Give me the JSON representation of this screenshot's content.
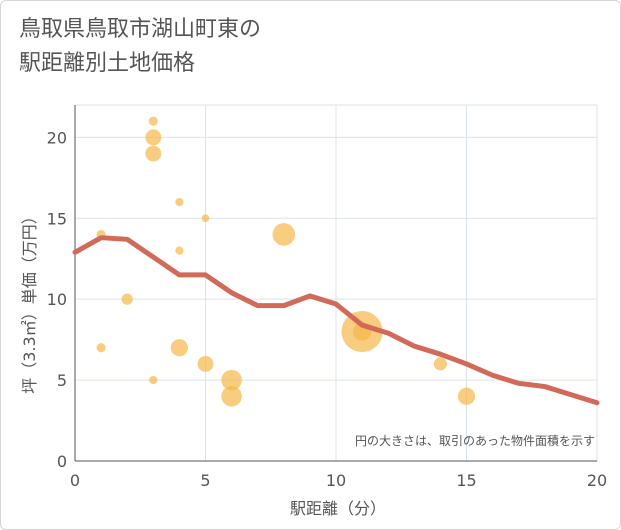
{
  "title": {
    "line1": "鳥取県鳥取市湖山町東の",
    "line2": "駅距離別土地価格"
  },
  "colors": {
    "bubble": "#f5b84a",
    "line": "#d26a5a",
    "grid": "#d9e3ec",
    "axis": "#555555"
  },
  "chart_data": {
    "type": "scatter",
    "title": "鳥取県鳥取市湖山町東の駅距離別土地価格",
    "xlabel": "駅距離（分）",
    "ylabel": "坪（3.3㎡）単価（万円）",
    "xlim": [
      0,
      20
    ],
    "ylim": [
      0,
      22
    ],
    "xticks": [
      0,
      5,
      10,
      15,
      20
    ],
    "yticks": [
      0,
      5,
      10,
      15,
      20
    ],
    "grid": true,
    "note": "円の大きさは、取引のあった物件面積を示す",
    "scatter": [
      {
        "x": 1,
        "y": 14,
        "size": 1
      },
      {
        "x": 1,
        "y": 7,
        "size": 1
      },
      {
        "x": 2,
        "y": 10,
        "size": 1.5
      },
      {
        "x": 3,
        "y": 21,
        "size": 1
      },
      {
        "x": 3,
        "y": 20,
        "size": 3
      },
      {
        "x": 3,
        "y": 19,
        "size": 3
      },
      {
        "x": 3,
        "y": 5,
        "size": 0.8
      },
      {
        "x": 4,
        "y": 16,
        "size": 0.8
      },
      {
        "x": 4,
        "y": 13,
        "size": 0.8
      },
      {
        "x": 4,
        "y": 7,
        "size": 3.5
      },
      {
        "x": 5,
        "y": 15,
        "size": 0.7
      },
      {
        "x": 5,
        "y": 6,
        "size": 3
      },
      {
        "x": 6,
        "y": 5,
        "size": 5
      },
      {
        "x": 6,
        "y": 4,
        "size": 5
      },
      {
        "x": 8,
        "y": 14,
        "size": 6
      },
      {
        "x": 11,
        "y": 8,
        "size": 20
      },
      {
        "x": 11,
        "y": 8,
        "size": 4
      },
      {
        "x": 14,
        "y": 6,
        "size": 2
      },
      {
        "x": 15,
        "y": 4,
        "size": 3.5
      }
    ],
    "trend": {
      "x": [
        0,
        1,
        2,
        3,
        4,
        5,
        6,
        7,
        8,
        9,
        10,
        11,
        12,
        13,
        14,
        15,
        16,
        17,
        18,
        19,
        20
      ],
      "y": [
        12.9,
        13.8,
        13.7,
        12.6,
        11.5,
        11.5,
        10.4,
        9.6,
        9.6,
        10.2,
        9.7,
        8.4,
        7.9,
        7.1,
        6.6,
        6.0,
        5.3,
        4.8,
        4.6,
        4.1,
        3.6
      ]
    }
  }
}
